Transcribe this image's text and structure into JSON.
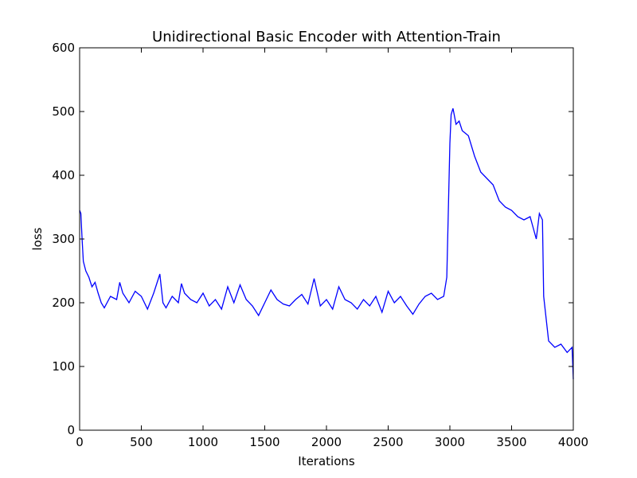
{
  "chart_data": {
    "type": "line",
    "title": "Unidirectional Basic Encoder with Attention-Train",
    "x_label": "Iterations",
    "y_label": "loss",
    "color": "#0000ff",
    "x": [
      0,
      10,
      20,
      30,
      50,
      75,
      100,
      125,
      150,
      175,
      200,
      250,
      300,
      325,
      350,
      400,
      450,
      500,
      550,
      600,
      650,
      675,
      700,
      750,
      800,
      825,
      850,
      900,
      950,
      1000,
      1050,
      1100,
      1150,
      1200,
      1250,
      1300,
      1350,
      1400,
      1450,
      1500,
      1550,
      1600,
      1650,
      1700,
      1750,
      1800,
      1850,
      1900,
      1950,
      2000,
      2050,
      2100,
      2150,
      2200,
      2250,
      2300,
      2350,
      2400,
      2450,
      2500,
      2550,
      2600,
      2650,
      2700,
      2750,
      2800,
      2850,
      2900,
      2950,
      2975,
      3000,
      3010,
      3025,
      3050,
      3075,
      3100,
      3150,
      3200,
      3250,
      3300,
      3350,
      3400,
      3450,
      3500,
      3550,
      3600,
      3650,
      3700,
      3725,
      3750,
      3760,
      3800,
      3850,
      3900,
      3950,
      3990,
      4000
    ],
    "values": [
      345,
      340,
      300,
      265,
      250,
      240,
      225,
      232,
      215,
      200,
      192,
      210,
      205,
      232,
      215,
      200,
      218,
      210,
      190,
      215,
      245,
      200,
      192,
      210,
      200,
      230,
      215,
      205,
      200,
      215,
      195,
      205,
      190,
      225,
      200,
      228,
      205,
      195,
      180,
      200,
      220,
      205,
      198,
      195,
      205,
      213,
      198,
      238,
      195,
      205,
      190,
      225,
      205,
      200,
      190,
      205,
      195,
      210,
      185,
      218,
      200,
      210,
      195,
      182,
      198,
      210,
      215,
      205,
      210,
      240,
      450,
      495,
      505,
      480,
      485,
      470,
      462,
      430,
      405,
      395,
      385,
      360,
      350,
      345,
      335,
      330,
      335,
      300,
      340,
      330,
      210,
      140,
      130,
      135,
      122,
      130,
      80
    ],
    "xlim": [
      0,
      4000
    ],
    "ylim": [
      0,
      600
    ],
    "xticks": [
      0,
      500,
      1000,
      1500,
      2000,
      2500,
      3000,
      3500,
      4000
    ],
    "yticks": [
      0,
      100,
      200,
      300,
      400,
      500,
      600
    ]
  }
}
